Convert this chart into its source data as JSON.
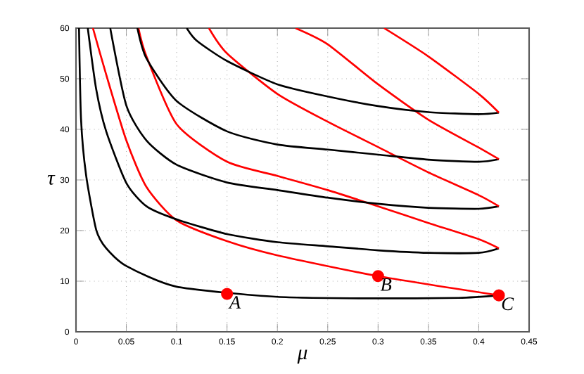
{
  "chart_data": {
    "type": "line",
    "xlabel": "μ",
    "ylabel": "τ",
    "xlim": [
      0,
      0.45
    ],
    "ylim": [
      0,
      60
    ],
    "xticks": [
      0,
      0.05,
      0.1,
      0.15,
      0.2,
      0.25,
      0.3,
      0.35,
      0.4,
      0.45
    ],
    "yticks": [
      0,
      10,
      20,
      30,
      40,
      50,
      60
    ],
    "grid": true,
    "marker": "none",
    "line_style": "solid",
    "series": [
      {
        "color": "#000000",
        "x": [
          0.003,
          0.005,
          0.01,
          0.02,
          0.03,
          0.05,
          0.1,
          0.2,
          0.3,
          0.38,
          0.42
        ],
        "values": [
          60,
          42,
          31,
          20.2,
          16.5,
          13,
          8.9,
          6.9,
          6.6,
          6.7,
          7.2
        ]
      },
      {
        "color": "#ff0000",
        "x": [
          0.0168,
          0.03,
          0.05,
          0.07,
          0.1,
          0.15,
          0.2,
          0.3,
          0.42
        ],
        "values": [
          60,
          50.8,
          37.8,
          28.6,
          22,
          17.9,
          15.1,
          11,
          7.2
        ]
      },
      {
        "color": "#000000",
        "x": [
          0.0117,
          0.02,
          0.03,
          0.05,
          0.07,
          0.1,
          0.15,
          0.2,
          0.25,
          0.3,
          0.35,
          0.4,
          0.42
        ],
        "values": [
          60,
          48,
          39.6,
          29.4,
          24.8,
          22.2,
          19.3,
          17.7,
          16.9,
          16.1,
          15.6,
          15.6,
          16.5
        ]
      },
      {
        "color": "#ff0000",
        "x": [
          0.062,
          0.07,
          0.1,
          0.15,
          0.2,
          0.25,
          0.3,
          0.35,
          0.4,
          0.42
        ],
        "values": [
          60,
          54.4,
          41,
          33.6,
          30.8,
          28,
          24.8,
          21.5,
          18.3,
          16.5
        ]
      },
      {
        "color": "#000000",
        "x": [
          0.034,
          0.05,
          0.07,
          0.1,
          0.15,
          0.2,
          0.25,
          0.3,
          0.35,
          0.4,
          0.42
        ],
        "values": [
          60,
          44.7,
          37.8,
          33,
          29.5,
          28,
          26.5,
          25.3,
          24.5,
          24.3,
          24.8
        ]
      },
      {
        "color": "#ff0000",
        "x": [
          0.132,
          0.15,
          0.2,
          0.25,
          0.3,
          0.35,
          0.4,
          0.42
        ],
        "values": [
          60,
          55,
          47,
          41.5,
          36.5,
          31.5,
          27,
          24.8
        ]
      },
      {
        "color": "#000000",
        "x": [
          0.061,
          0.07,
          0.1,
          0.15,
          0.2,
          0.25,
          0.3,
          0.35,
          0.4,
          0.42
        ],
        "values": [
          60,
          54,
          45.6,
          39.6,
          37,
          36,
          35,
          34,
          33.6,
          34.1
        ]
      },
      {
        "color": "#ff0000",
        "x": [
          0.218,
          0.25,
          0.3,
          0.35,
          0.4,
          0.42
        ],
        "values": [
          60,
          56.8,
          48.9,
          41.9,
          36.4,
          34.1
        ]
      },
      {
        "color": "#000000",
        "x": [
          0.11,
          0.12,
          0.15,
          0.2,
          0.25,
          0.3,
          0.35,
          0.4,
          0.42
        ],
        "values": [
          60,
          57.5,
          53.5,
          48.9,
          46.5,
          44.6,
          43.4,
          43,
          43.3
        ]
      },
      {
        "color": "#ff0000",
        "x": [
          0.306,
          0.35,
          0.4,
          0.42
        ],
        "values": [
          60,
          54.4,
          47,
          43.3
        ]
      },
      {
        "type": "scatter",
        "marker": "circle",
        "color": "#ff0000",
        "x": [
          0.15,
          0.3,
          0.42
        ],
        "values": [
          7.5,
          11,
          7.2
        ]
      }
    ],
    "annotations": [
      {
        "text": "A",
        "x": 0.15,
        "y": 7.5
      },
      {
        "text": "B",
        "x": 0.3,
        "y": 11
      },
      {
        "text": "C",
        "x": 0.42,
        "y": 7.2
      }
    ]
  }
}
